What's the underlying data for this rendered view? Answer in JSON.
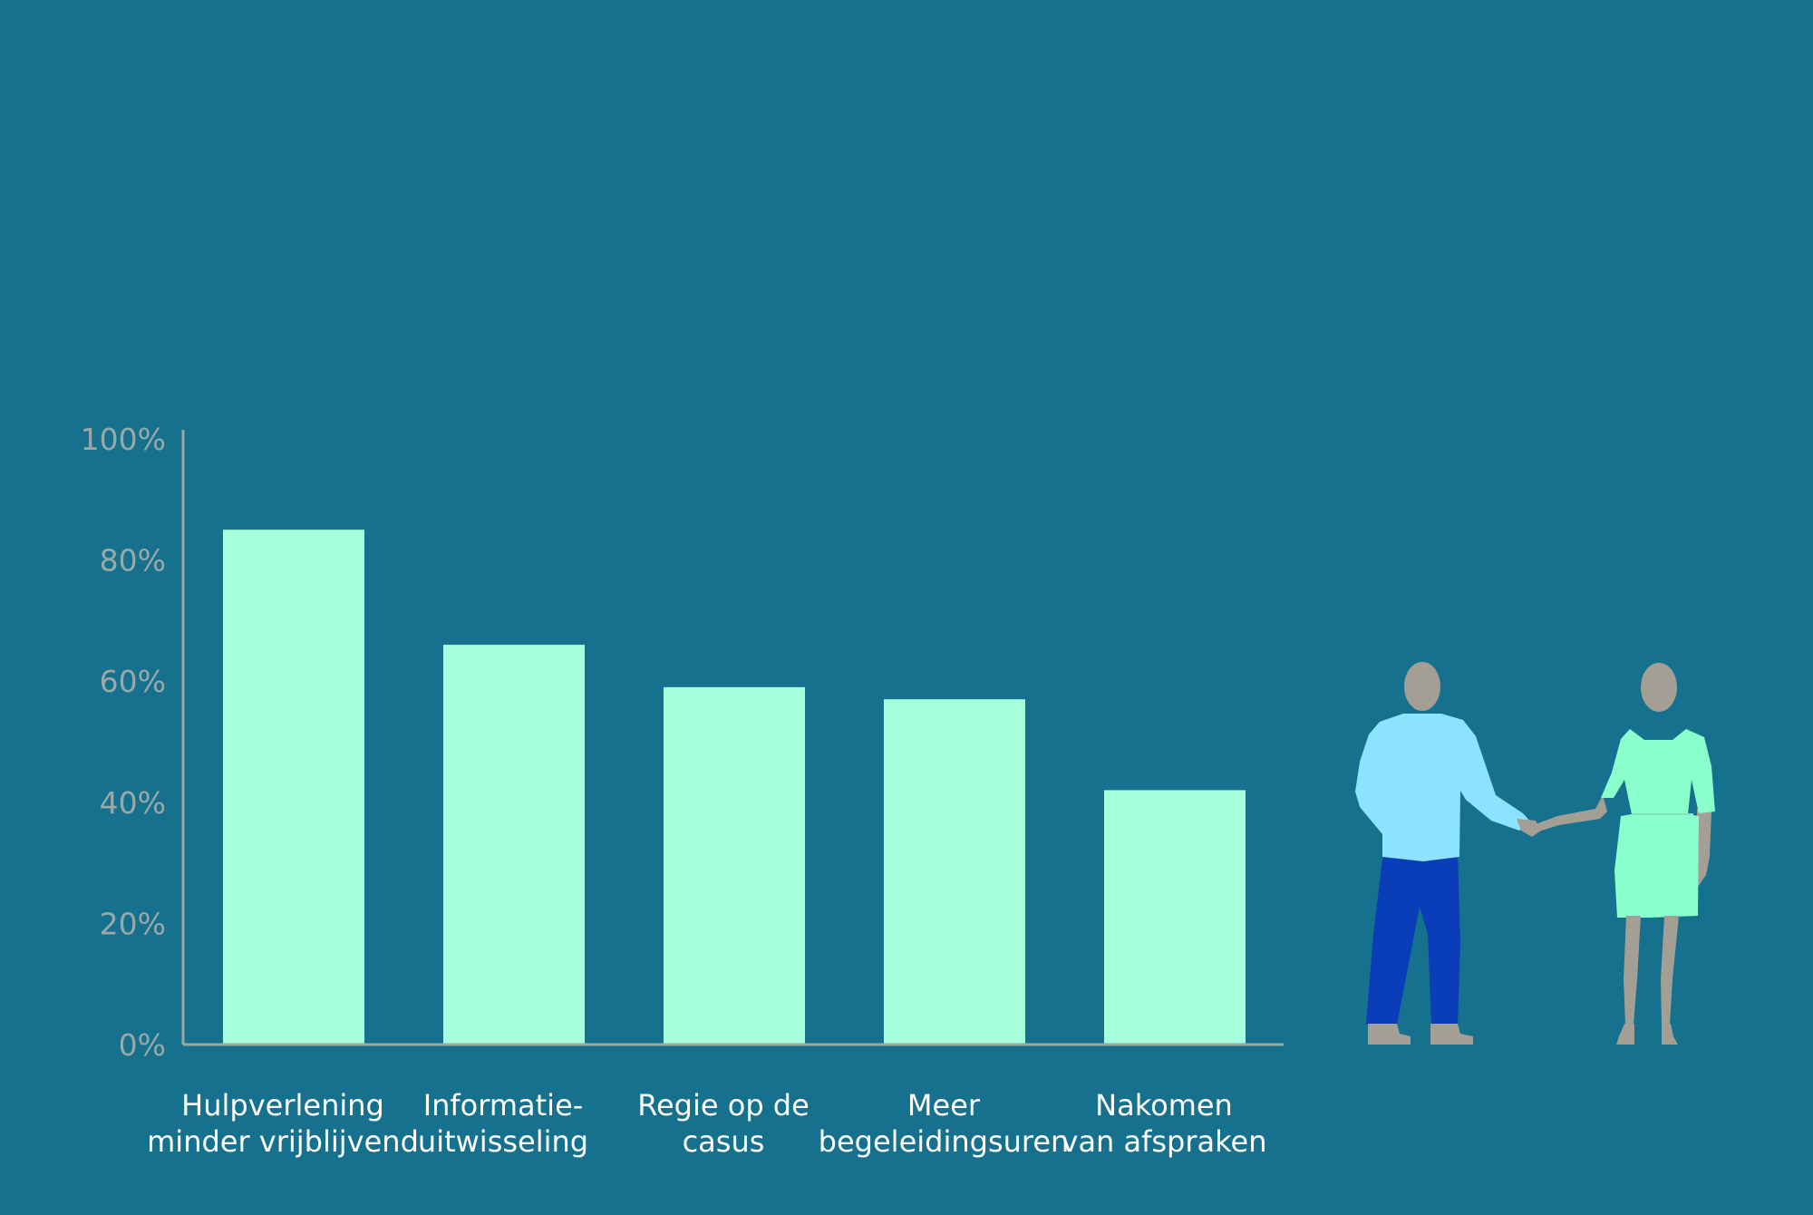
{
  "chart_data": {
    "type": "bar",
    "categories": [
      [
        "Hulpverlening",
        "minder vrijblijvend"
      ],
      [
        "Informatie-",
        "uitwisseling"
      ],
      [
        "Regie op de",
        "casus"
      ],
      [
        "Meer",
        "begeleidingsuren"
      ],
      [
        "Nakomen",
        "van afspraken"
      ]
    ],
    "values": [
      85,
      66,
      59,
      57,
      42
    ],
    "unit": "%",
    "ylim": [
      0,
      100
    ],
    "yticks": [
      "0%",
      "20%",
      "40%",
      "60%",
      "80%",
      "100%"
    ],
    "tick_values": [
      0,
      20,
      40,
      60,
      80,
      100
    ],
    "title": "",
    "xlabel": "",
    "ylabel": "",
    "grid": false,
    "legend": "none"
  },
  "colors": {
    "background": "#16718e",
    "bar": "#a7ffdc",
    "axis": "#9aa8a8",
    "tick_text": "#9aa8a8",
    "label_text": "#ffffff",
    "man_shirt": "#8de2ff",
    "man_pants": "#0a3db8",
    "woman_dress": "#8affcc",
    "skin": "#a39f94"
  },
  "illustration": {
    "name": "two-people-shaking-hands-icon"
  }
}
